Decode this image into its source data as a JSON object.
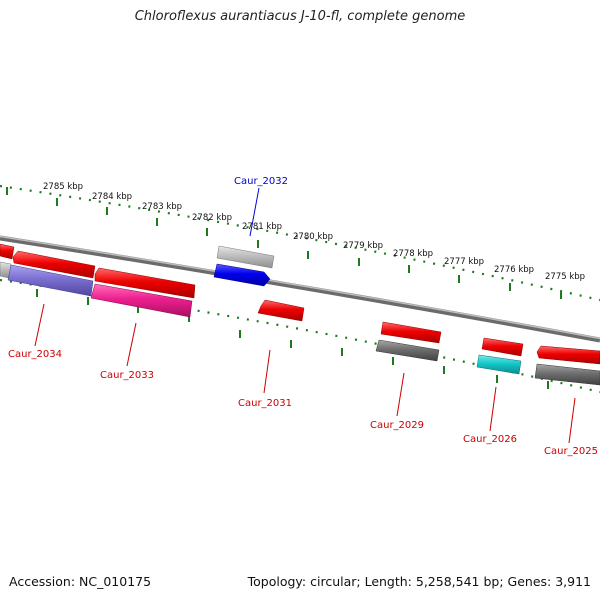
{
  "title": "Chloroflexus aurantiacus J-10-fl, complete genome",
  "footer": {
    "accession": "Accession: NC_010175",
    "summary": "Topology: circular; Length: 5,258,541 bp; Genes: 3,911"
  },
  "scale_ticks": [
    "2785 kbp",
    "2784 kbp",
    "2783 kbp",
    "2782 kbp",
    "2781 kbp",
    "2780 kbp",
    "2779 kbp",
    "2778 kbp",
    "2777 kbp",
    "2776 kbp",
    "2775 kbp"
  ],
  "gene_labels": [
    "Caur_2032",
    "Caur_2034",
    "Caur_2033",
    "Caur_2031",
    "Caur_2029",
    "Caur_2026",
    "Caur_2025"
  ],
  "colors": {
    "backbone": "#8a8a8a",
    "tick": "#1f7a1f",
    "red_gene": "#ee0000",
    "gray_gene": "#6e6e6e",
    "light_gray_gene": "#bdbdbd",
    "blue_gene": "#0000ee",
    "purple_gene": "#7b6fd0",
    "pink_gene": "#ee1f8f",
    "cyan_gene": "#14c8c8",
    "label_red": "#cc0000",
    "label_blue": "#0000cc"
  }
}
